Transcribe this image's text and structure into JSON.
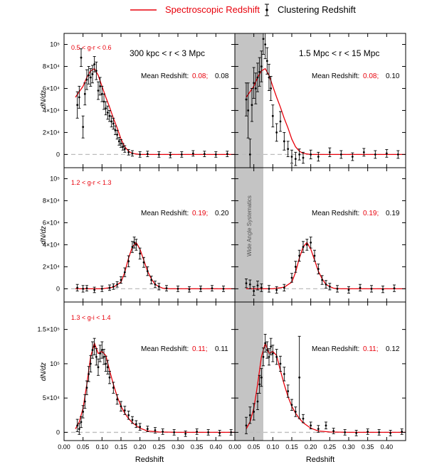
{
  "legend": {
    "spec_label": "Spectroscopic Redshift",
    "clust_label": "Clustering Redshift",
    "spec_color": "#e8000b",
    "clust_color": "#000000"
  },
  "panel_titles": {
    "inner": "300 kpc < r < 3 Mpc",
    "outer": "1.5 Mpc < r < 15 Mpc"
  },
  "systematics_label": "Wide Angle Systematics",
  "xlabel": "Redshift",
  "ylabel": "dN/dz",
  "chart_data": {
    "type": "line",
    "xlim": [
      0.0,
      0.45
    ],
    "x_ticks": [
      0.0,
      0.05,
      0.1,
      0.15,
      0.2,
      0.25,
      0.3,
      0.35,
      0.4
    ],
    "x_tick_labels_left": [
      "0.00",
      "0.05",
      "0.10",
      "0.15",
      "0.20",
      "0.25",
      "0.30",
      "0.35",
      "0.40"
    ],
    "x_tick_labels_right": [
      "0.00",
      "0.05",
      "0.10",
      "0.15",
      "0.20",
      "0.25",
      "0.30",
      "0.35",
      "0.40"
    ],
    "shaded_band_x": [
      0.0,
      0.075
    ],
    "rows": [
      {
        "color_cut": "0.5 < g-r < 0.6",
        "ylim": [
          -12000,
          110000
        ],
        "y_ticks": [
          0,
          20000,
          40000,
          60000,
          80000,
          100000
        ],
        "y_tick_labels": [
          "0",
          "2×10⁴",
          "4×10⁴",
          "6×10⁴",
          "8×10⁴",
          "10⁵"
        ],
        "mean_label": "Mean Redshift:",
        "spec_mean": "0.08;",
        "inner_clust_mean": "0.08",
        "outer_clust_mean": "0.10",
        "spec_x": [
          0.03,
          0.04,
          0.05,
          0.06,
          0.07,
          0.08,
          0.09,
          0.1,
          0.11,
          0.12,
          0.13,
          0.14,
          0.15,
          0.16,
          0.17,
          0.18,
          0.2,
          0.25,
          0.3,
          0.35,
          0.4,
          0.45
        ],
        "spec_y": [
          52000,
          57000,
          62000,
          70000,
          76000,
          78000,
          72000,
          62000,
          52000,
          43000,
          33000,
          24000,
          14000,
          7000,
          3000,
          1000,
          0,
          0,
          0,
          0,
          0,
          0
        ],
        "inner_clust": {
          "x": [
            0.035,
            0.04,
            0.045,
            0.05,
            0.055,
            0.06,
            0.065,
            0.07,
            0.075,
            0.08,
            0.085,
            0.09,
            0.095,
            0.1,
            0.105,
            0.11,
            0.115,
            0.12,
            0.125,
            0.13,
            0.135,
            0.14,
            0.145,
            0.15,
            0.155,
            0.16,
            0.17,
            0.18,
            0.2,
            0.22,
            0.25,
            0.28,
            0.31,
            0.34,
            0.37,
            0.4,
            0.43
          ],
          "y": [
            45000,
            52000,
            88000,
            25000,
            55000,
            68000,
            72000,
            70000,
            73000,
            82000,
            76000,
            58000,
            62000,
            55000,
            48000,
            42000,
            38000,
            35000,
            30000,
            28000,
            22000,
            18000,
            12000,
            10000,
            7000,
            5000,
            2000,
            1000,
            0,
            500,
            0,
            -500,
            0,
            1000,
            500,
            0,
            500
          ],
          "err": [
            12000,
            10000,
            8000,
            10000,
            10000,
            9000,
            8000,
            8000,
            8000,
            7000,
            8000,
            8000,
            8000,
            7000,
            7000,
            6000,
            6000,
            5000,
            5000,
            5000,
            4000,
            4000,
            3500,
            3500,
            3000,
            3000,
            2500,
            2500,
            2500,
            2500,
            2500,
            2500,
            2500,
            2500,
            2500,
            2500,
            2500
          ]
        },
        "outer_clust": {
          "x": [
            0.03,
            0.035,
            0.04,
            0.045,
            0.05,
            0.055,
            0.06,
            0.065,
            0.07,
            0.075,
            0.08,
            0.085,
            0.09,
            0.095,
            0.1,
            0.11,
            0.12,
            0.13,
            0.14,
            0.15,
            0.16,
            0.17,
            0.18,
            0.2,
            0.22,
            0.25,
            0.28,
            0.31,
            0.34,
            0.37,
            0.4,
            0.43
          ],
          "y": [
            50000,
            40000,
            0,
            45000,
            65000,
            60000,
            70000,
            75000,
            80000,
            105000,
            100000,
            85000,
            70000,
            60000,
            35000,
            20000,
            30000,
            12000,
            5000,
            -2000,
            -4000,
            0,
            -3000,
            0,
            -2000,
            2000,
            0,
            -2000,
            2000,
            0,
            1000,
            0
          ],
          "err": [
            15000,
            25000,
            14000,
            15000,
            14000,
            14000,
            13000,
            13000,
            14000,
            14000,
            13000,
            12000,
            12000,
            11000,
            10000,
            8000,
            9000,
            8000,
            7000,
            6000,
            6000,
            5000,
            5000,
            4000,
            4000,
            4000,
            3500,
            3500,
            3500,
            3500,
            3500,
            3500
          ]
        }
      },
      {
        "color_cut": "1.2 < g-r < 1.3",
        "ylim": [
          -12000,
          110000
        ],
        "y_ticks": [
          0,
          20000,
          40000,
          60000,
          80000,
          100000
        ],
        "y_tick_labels": [
          "0",
          "2×10⁴",
          "4×10⁴",
          "6×10⁴",
          "8×10⁴",
          "10⁵"
        ],
        "mean_label": "Mean Redshift:",
        "spec_mean": "0.19;",
        "inner_clust_mean": "0.20",
        "outer_clust_mean": "0.19",
        "spec_x": [
          0.03,
          0.1,
          0.13,
          0.15,
          0.16,
          0.17,
          0.18,
          0.19,
          0.2,
          0.21,
          0.22,
          0.23,
          0.24,
          0.25,
          0.26,
          0.28,
          0.3,
          0.35,
          0.4,
          0.45
        ],
        "spec_y": [
          0,
          0,
          1500,
          6000,
          15000,
          28000,
          38000,
          42000,
          36000,
          26000,
          16000,
          9000,
          4000,
          2000,
          500,
          0,
          0,
          0,
          0,
          0
        ],
        "inner_clust": {
          "x": [
            0.035,
            0.05,
            0.06,
            0.08,
            0.1,
            0.12,
            0.13,
            0.14,
            0.15,
            0.16,
            0.17,
            0.18,
            0.185,
            0.19,
            0.2,
            0.21,
            0.22,
            0.23,
            0.24,
            0.25,
            0.27,
            0.3,
            0.33,
            0.36,
            0.39,
            0.42
          ],
          "y": [
            1000,
            0,
            500,
            -1000,
            0,
            1000,
            2000,
            4000,
            8000,
            15000,
            25000,
            38000,
            42000,
            40000,
            32000,
            24000,
            16000,
            8000,
            4000,
            2000,
            500,
            0,
            -500,
            0,
            500,
            0
          ],
          "err": [
            3000,
            3000,
            2500,
            2500,
            2500,
            2500,
            2500,
            2500,
            3000,
            4000,
            5000,
            5000,
            5000,
            5000,
            5000,
            4500,
            4000,
            3500,
            3000,
            3000,
            2500,
            2500,
            2500,
            2500,
            2500,
            2500
          ]
        },
        "outer_clust": {
          "x": [
            0.03,
            0.04,
            0.05,
            0.06,
            0.07,
            0.09,
            0.11,
            0.13,
            0.15,
            0.16,
            0.17,
            0.18,
            0.19,
            0.2,
            0.21,
            0.22,
            0.23,
            0.24,
            0.25,
            0.27,
            0.3,
            0.33,
            0.36,
            0.39,
            0.42
          ],
          "y": [
            5000,
            4000,
            -2000,
            3000,
            1000,
            0,
            -1000,
            1000,
            10000,
            20000,
            30000,
            38000,
            40000,
            42000,
            30000,
            18000,
            8000,
            4000,
            2000,
            0,
            -1000,
            1000,
            0,
            -500,
            500
          ],
          "err": [
            4000,
            4000,
            4000,
            4000,
            3500,
            3000,
            3000,
            3000,
            4000,
            5000,
            5000,
            5000,
            5000,
            5000,
            5000,
            4500,
            4000,
            3500,
            3000,
            3000,
            3000,
            3000,
            3000,
            3000,
            3000
          ]
        }
      },
      {
        "color_cut": "1.3 < g-i < 1.4",
        "ylim": [
          -12000,
          190000
        ],
        "y_ticks": [
          0,
          50000,
          100000,
          150000
        ],
        "y_tick_labels": [
          "0",
          "5×10⁴",
          "10⁵",
          "1.5×10⁵"
        ],
        "mean_label": "Mean Redshift:",
        "spec_mean": "0.11;",
        "inner_clust_mean": "0.11",
        "outer_clust_mean": "0.12",
        "spec_x": [
          0.03,
          0.04,
          0.05,
          0.06,
          0.07,
          0.08,
          0.09,
          0.1,
          0.11,
          0.12,
          0.13,
          0.14,
          0.15,
          0.16,
          0.17,
          0.18,
          0.2,
          0.22,
          0.25,
          0.3,
          0.35,
          0.4,
          0.45
        ],
        "spec_y": [
          5000,
          15000,
          35000,
          70000,
          110000,
          130000,
          115000,
          118000,
          112000,
          90000,
          70000,
          52000,
          38000,
          28000,
          20000,
          14000,
          6000,
          2000,
          500,
          0,
          0,
          0,
          0
        ],
        "inner_clust": {
          "x": [
            0.035,
            0.04,
            0.045,
            0.05,
            0.055,
            0.06,
            0.065,
            0.07,
            0.075,
            0.08,
            0.085,
            0.09,
            0.095,
            0.1,
            0.105,
            0.11,
            0.115,
            0.12,
            0.13,
            0.14,
            0.15,
            0.16,
            0.17,
            0.18,
            0.19,
            0.2,
            0.22,
            0.24,
            0.26,
            0.29,
            0.32,
            0.35,
            0.38,
            0.41,
            0.44
          ],
          "y": [
            10000,
            5000,
            15000,
            30000,
            45000,
            65000,
            85000,
            100000,
            120000,
            125000,
            110000,
            95000,
            115000,
            120000,
            110000,
            100000,
            95000,
            80000,
            65000,
            48000,
            38000,
            32000,
            25000,
            18000,
            12000,
            8000,
            5000,
            3000,
            1000,
            0,
            -2000,
            1000,
            0,
            -1000,
            0
          ],
          "err": [
            9000,
            8000,
            8000,
            9000,
            10000,
            10000,
            11000,
            12000,
            12000,
            12000,
            12000,
            12000,
            12000,
            12000,
            11000,
            11000,
            10000,
            9000,
            8000,
            7000,
            7000,
            6000,
            6000,
            5000,
            5000,
            5000,
            4000,
            4000,
            4000,
            4000,
            4000,
            4000,
            4000,
            4000,
            4000
          ]
        },
        "outer_clust": {
          "x": [
            0.03,
            0.04,
            0.05,
            0.06,
            0.065,
            0.07,
            0.075,
            0.08,
            0.085,
            0.09,
            0.095,
            0.1,
            0.11,
            0.12,
            0.13,
            0.14,
            0.15,
            0.16,
            0.17,
            0.18,
            0.2,
            0.22,
            0.24,
            0.26,
            0.29,
            0.32,
            0.35,
            0.38,
            0.41,
            0.44
          ],
          "y": [
            10000,
            25000,
            30000,
            45000,
            70000,
            80000,
            110000,
            130000,
            120000,
            110000,
            125000,
            115000,
            110000,
            100000,
            85000,
            60000,
            40000,
            30000,
            80000,
            20000,
            10000,
            5000,
            10000,
            2000,
            0,
            -1000,
            1000,
            0,
            -1000,
            1000
          ],
          "err": [
            12000,
            12000,
            12000,
            12000,
            13000,
            13000,
            13000,
            13000,
            12000,
            12000,
            12000,
            12000,
            11000,
            11000,
            10000,
            9000,
            8000,
            7000,
            60000,
            6000,
            5000,
            5000,
            5000,
            4000,
            4000,
            4000,
            4000,
            4000,
            4000,
            4000
          ]
        }
      }
    ]
  }
}
